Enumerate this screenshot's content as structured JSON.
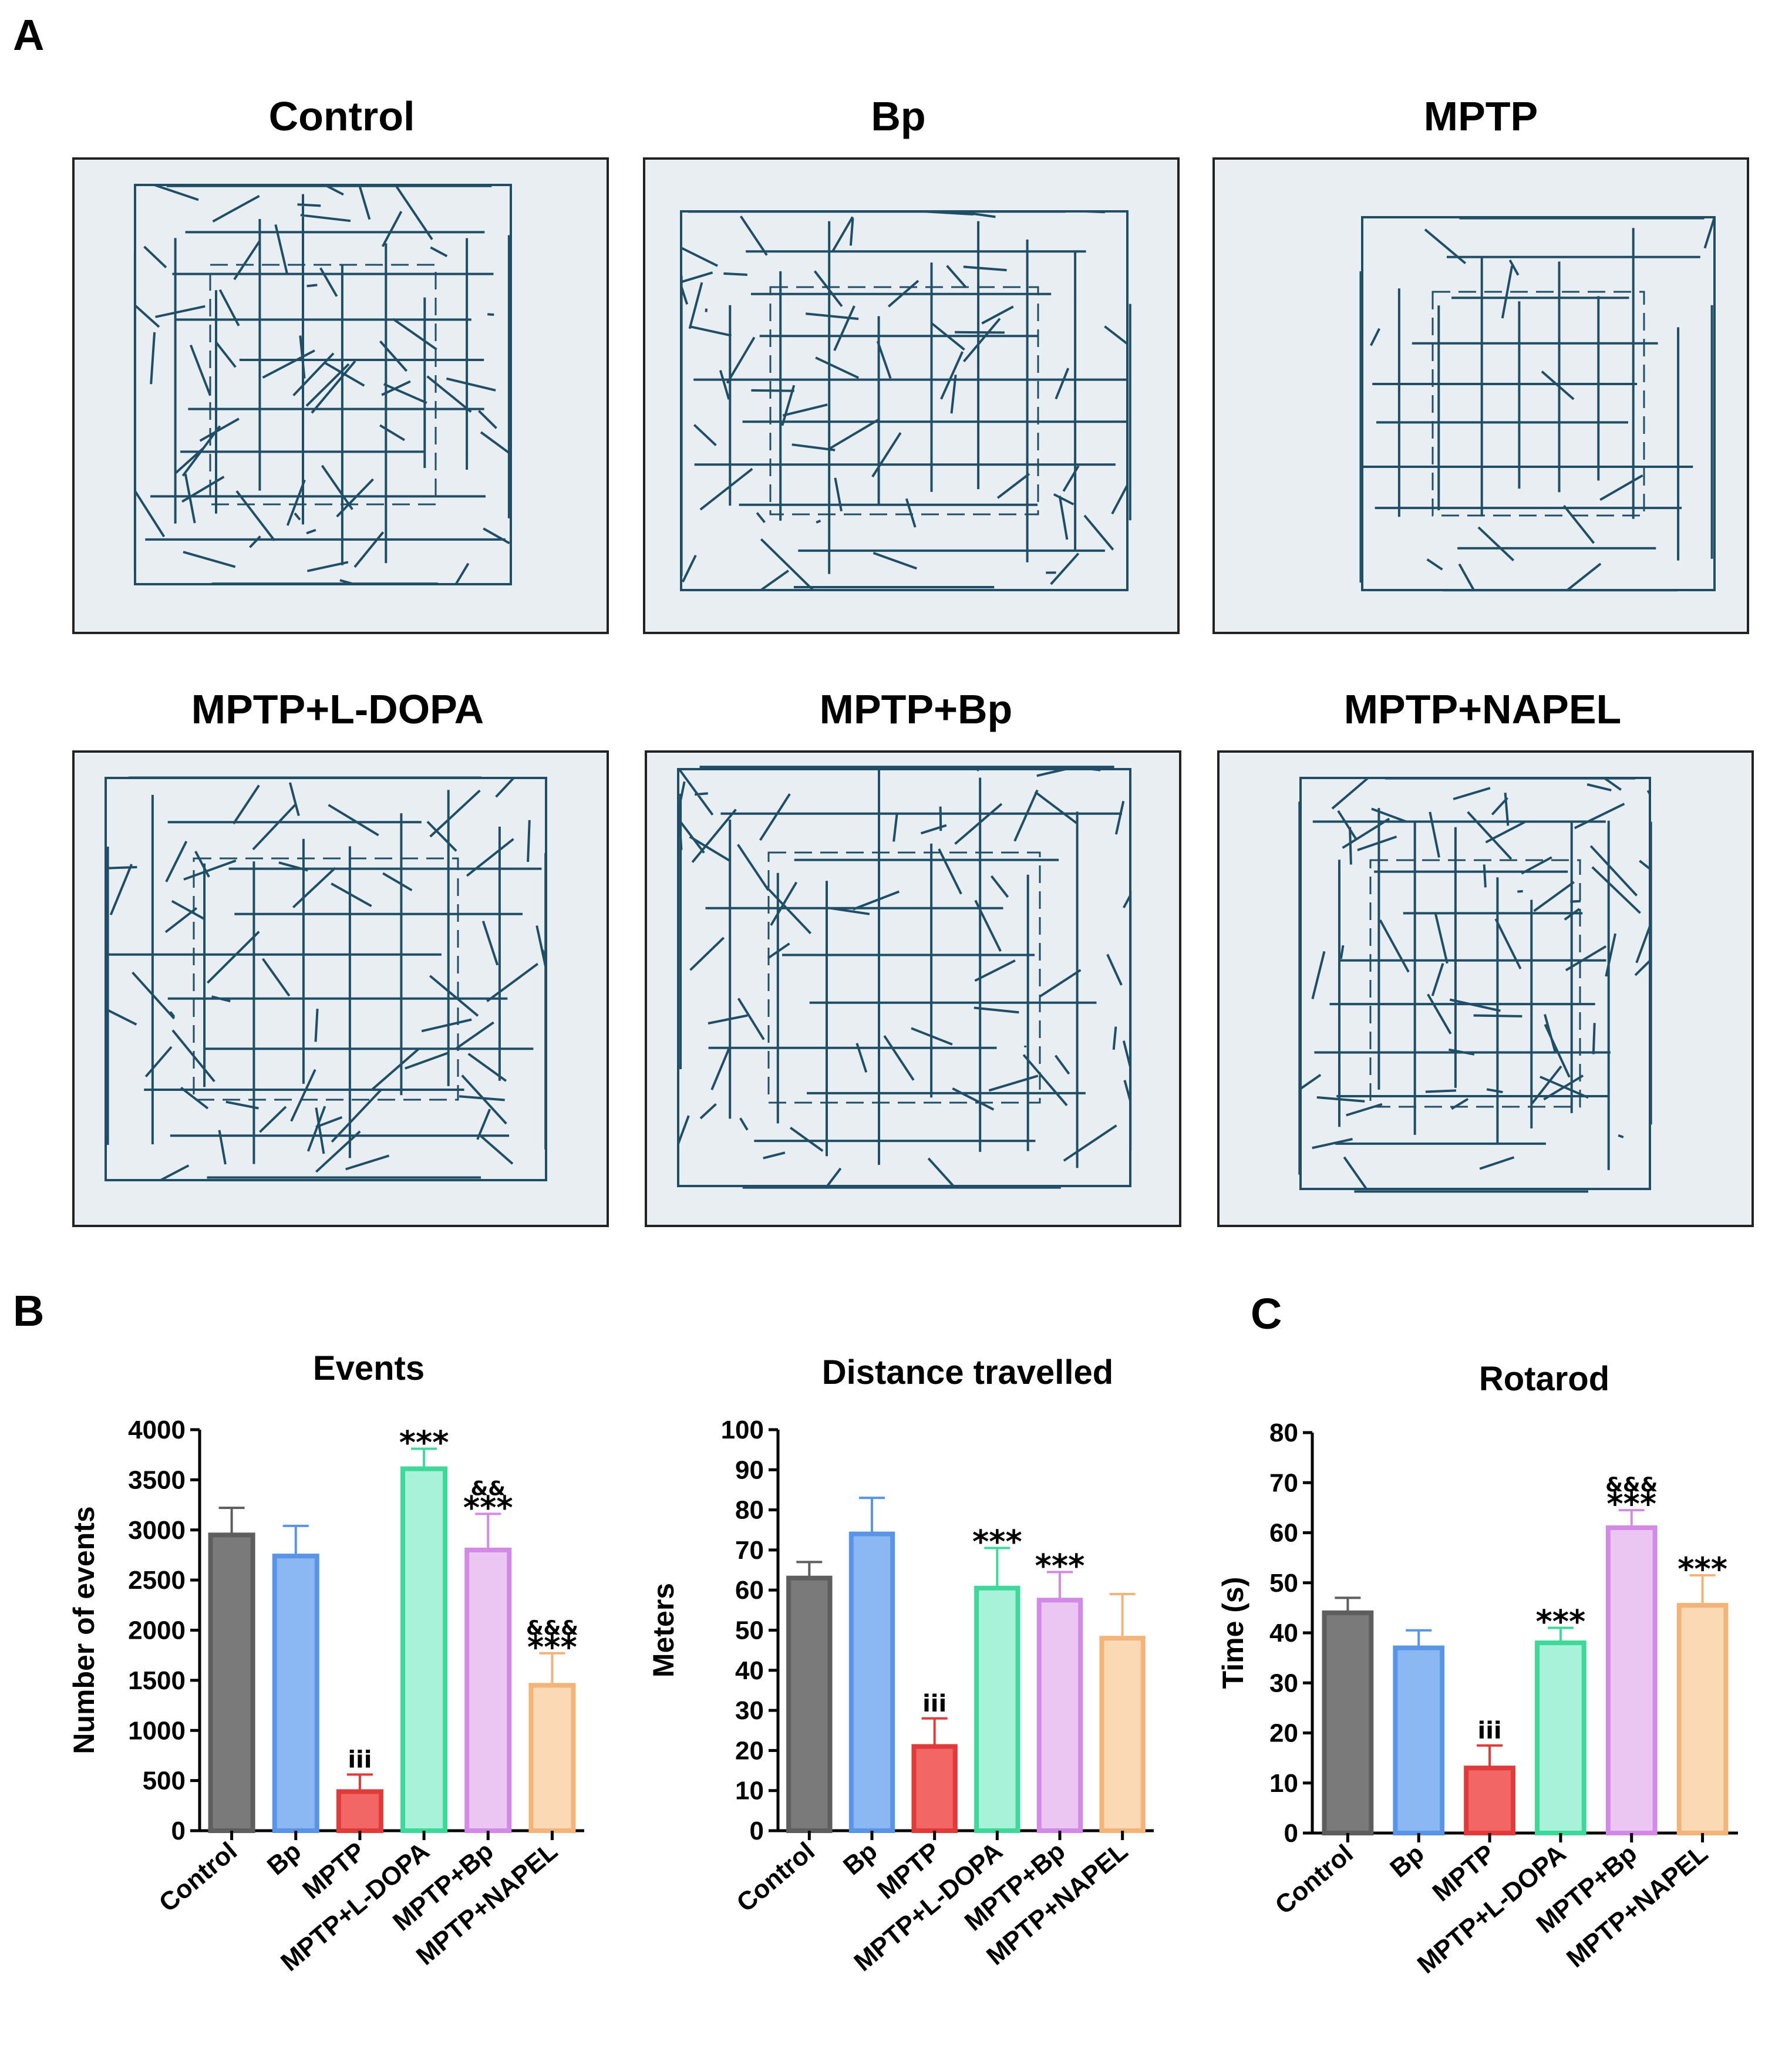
{
  "panels": {
    "a": "A",
    "b": "B",
    "c": "C"
  },
  "tracks": [
    {
      "title": "Control"
    },
    {
      "title": "Bp"
    },
    {
      "title": "MPTP"
    },
    {
      "title": "MPTP+L-DOPA"
    },
    {
      "title": "MPTP+Bp"
    },
    {
      "title": "MPTP+NAPEL"
    }
  ],
  "colors": {
    "track_line": "#1f4e66",
    "arena_bg": "#e8eef2",
    "groups_fill": [
      "#7a7a7a",
      "#8bb8f2",
      "#f26666",
      "#a8f2da",
      "#ebc6f2",
      "#fad9b4"
    ],
    "groups_stroke": [
      "#5e5e5e",
      "#5a94e6",
      "#e03a3a",
      "#3ed99a",
      "#d38ae6",
      "#f2b478"
    ]
  },
  "chart_data": [
    {
      "type": "bar",
      "title": "Events",
      "ylabel": "Number of events",
      "xlabel": "",
      "categories": [
        "Control",
        "Bp",
        "MPTP",
        "MPTP+L-DOPA",
        "MPTP+Bp",
        "MPTP+NAPEL"
      ],
      "values": [
        2950,
        2740,
        390,
        3610,
        2800,
        1450
      ],
      "errors": [
        270,
        300,
        170,
        200,
        360,
        320
      ],
      "ylim": [
        0,
        4000
      ],
      "yticks": [
        "0",
        "500",
        "1000",
        "1500",
        "2000",
        "2500",
        "3000",
        "3500",
        "4000"
      ],
      "annotations": [
        {
          "category": "MPTP",
          "text": "iii",
          "small": ""
        },
        {
          "category": "MPTP+L-DOPA",
          "text": "***",
          "small": ""
        },
        {
          "category": "MPTP+Bp",
          "text": "***",
          "small": "&&"
        },
        {
          "category": "MPTP+NAPEL",
          "text": "***",
          "small": "&&&"
        }
      ]
    },
    {
      "type": "bar",
      "title": "Distance travelled",
      "ylabel": "Meters",
      "xlabel": "",
      "categories": [
        "Control",
        "Bp",
        "MPTP",
        "MPTP+L-DOPA",
        "MPTP+Bp",
        "MPTP+NAPEL"
      ],
      "values": [
        63,
        74,
        21,
        60.5,
        57.5,
        48
      ],
      "errors": [
        4,
        9,
        7,
        10,
        7,
        11
      ],
      "ylim": [
        0,
        100
      ],
      "yticks": [
        "0",
        "10",
        "20",
        "30",
        "40",
        "50",
        "60",
        "70",
        "80",
        "90",
        "100"
      ],
      "annotations": [
        {
          "category": "MPTP",
          "text": "iii",
          "small": ""
        },
        {
          "category": "MPTP+L-DOPA",
          "text": "***",
          "small": ""
        },
        {
          "category": "MPTP+Bp",
          "text": "***",
          "small": ""
        }
      ]
    },
    {
      "type": "bar",
      "title": "Rotarod",
      "ylabel": "Time (s)",
      "xlabel": "",
      "categories": [
        "Control",
        "Bp",
        "MPTP",
        "MPTP+L-DOPA",
        "MPTP+Bp",
        "MPTP+NAPEL"
      ],
      "values": [
        44,
        37,
        13,
        38,
        61,
        45.5
      ],
      "errors": [
        3,
        3.5,
        4.5,
        3,
        3.5,
        6
      ],
      "ylim": [
        0,
        80
      ],
      "yticks": [
        "0",
        "10",
        "20",
        "30",
        "40",
        "50",
        "60",
        "70",
        "80"
      ],
      "annotations": [
        {
          "category": "MPTP",
          "text": "iii",
          "small": ""
        },
        {
          "category": "MPTP+L-DOPA",
          "text": "***",
          "small": ""
        },
        {
          "category": "MPTP+Bp",
          "text": "***",
          "small": "&&&"
        },
        {
          "category": "MPTP+NAPEL",
          "text": "***",
          "small": ""
        }
      ]
    }
  ]
}
